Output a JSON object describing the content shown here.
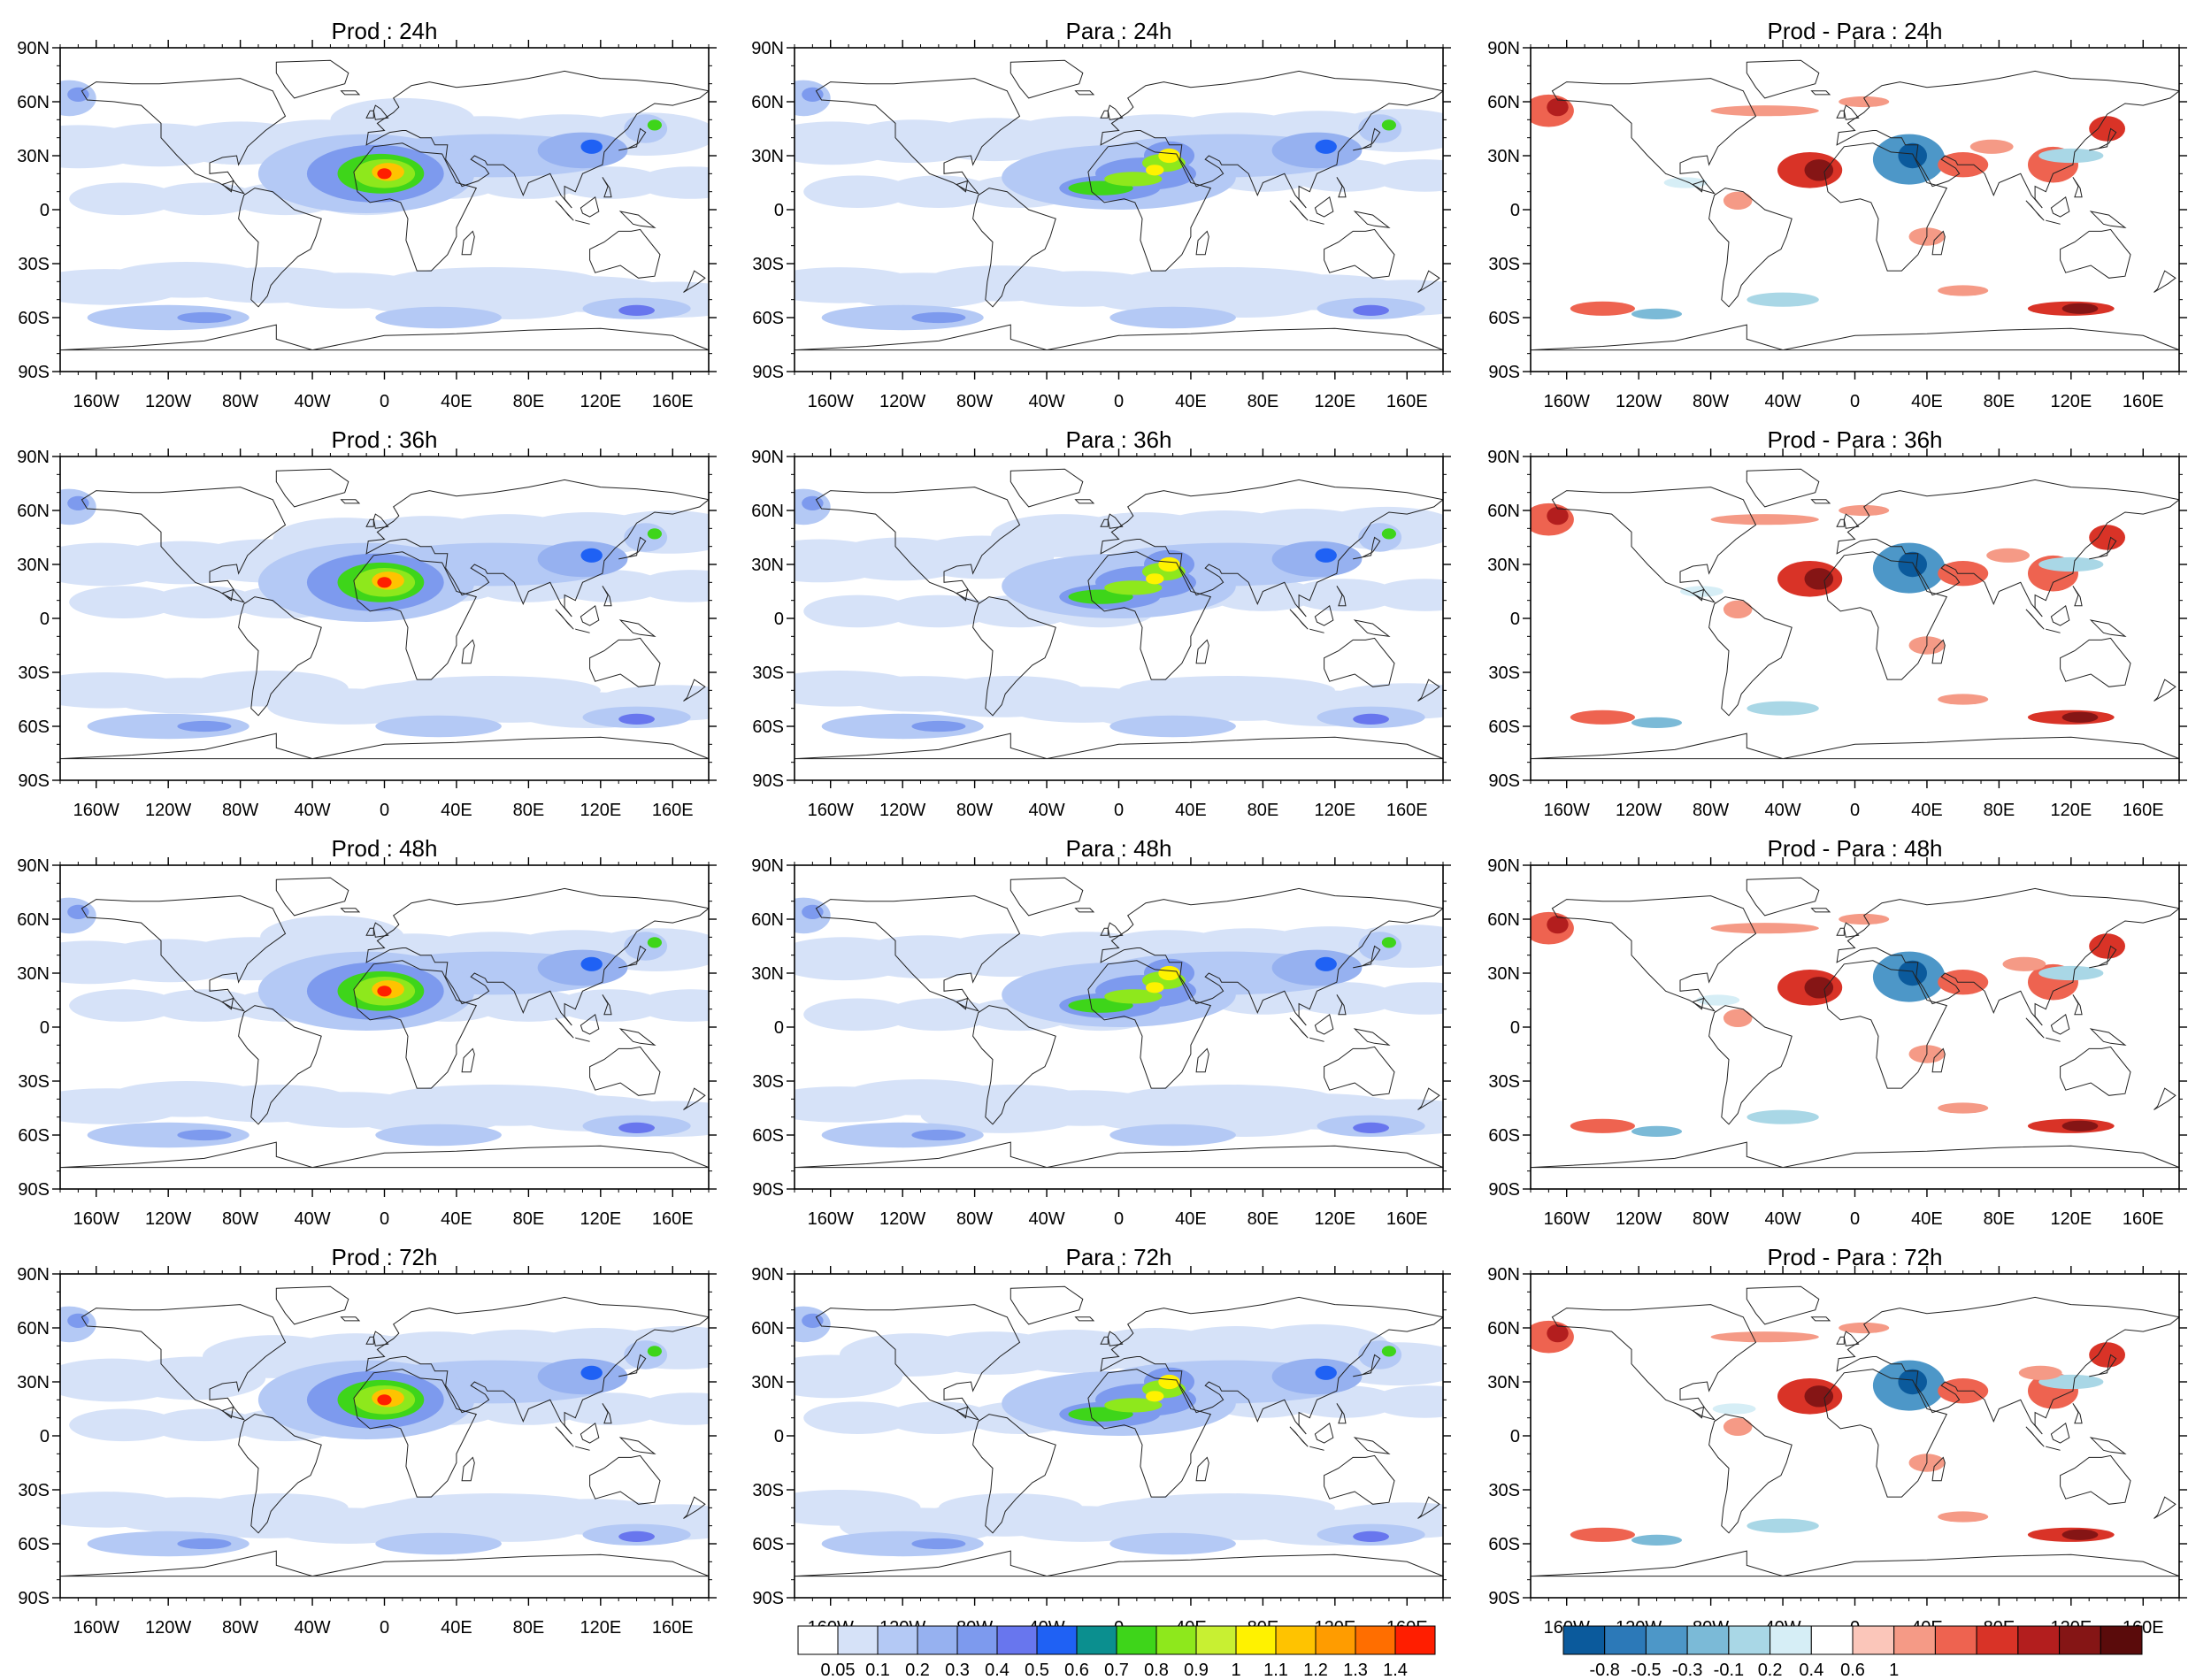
{
  "figure": {
    "panels": [
      {
        "title": "Prod : 24h",
        "kind": "field",
        "pattern": "prod"
      },
      {
        "title": "Para : 24h",
        "kind": "field",
        "pattern": "para"
      },
      {
        "title": "Prod - Para : 24h",
        "kind": "diff"
      },
      {
        "title": "Prod : 36h",
        "kind": "field",
        "pattern": "prod"
      },
      {
        "title": "Para : 36h",
        "kind": "field",
        "pattern": "para"
      },
      {
        "title": "Prod - Para : 36h",
        "kind": "diff"
      },
      {
        "title": "Prod : 48h",
        "kind": "field",
        "pattern": "prod"
      },
      {
        "title": "Para : 48h",
        "kind": "field",
        "pattern": "para"
      },
      {
        "title": "Prod - Para : 48h",
        "kind": "diff"
      },
      {
        "title": "Prod : 72h",
        "kind": "field",
        "pattern": "prod"
      },
      {
        "title": "Para : 72h",
        "kind": "field",
        "pattern": "para"
      },
      {
        "title": "Prod - Para : 72h",
        "kind": "diff"
      }
    ],
    "lat_ticks": [
      {
        "label": "90N",
        "lat": 90
      },
      {
        "label": "60N",
        "lat": 60
      },
      {
        "label": "30N",
        "lat": 30
      },
      {
        "label": "0",
        "lat": 0
      },
      {
        "label": "30S",
        "lat": -30
      },
      {
        "label": "60S",
        "lat": -60
      },
      {
        "label": "90S",
        "lat": -90
      }
    ],
    "lon_ticks": [
      {
        "label": "160W",
        "lon": -160
      },
      {
        "label": "120W",
        "lon": -120
      },
      {
        "label": "80W",
        "lon": -80
      },
      {
        "label": "40W",
        "lon": -40
      },
      {
        "label": "0",
        "lon": 0
      },
      {
        "label": "40E",
        "lon": 40
      },
      {
        "label": "80E",
        "lon": 80
      },
      {
        "label": "120E",
        "lon": 120
      },
      {
        "label": "160E",
        "lon": 160
      }
    ],
    "colorbar_field": {
      "labels": [
        "0.05",
        "0.1",
        "0.2",
        "0.3",
        "0.4",
        "0.5",
        "0.6",
        "0.7",
        "0.8",
        "0.9",
        "1",
        "1.1",
        "1.2",
        "1.3",
        "1.4"
      ],
      "colors": [
        "#ffffff",
        "#d6e2f8",
        "#b4c9f5",
        "#96b1f0",
        "#7d9aee",
        "#6876ee",
        "#1f61f4",
        "#0b8f8f",
        "#3ed51a",
        "#8ee81c",
        "#c8f032",
        "#fff200",
        "#ffc300",
        "#ff9c00",
        "#ff6e00",
        "#ff1e00"
      ]
    },
    "colorbar_diff": {
      "labels": [
        "-0.8",
        "-0.5",
        "-0.3",
        "-0.1",
        "0.2",
        "0.4",
        "0.6",
        "1"
      ],
      "colors": [
        "#0b5a9c",
        "#2c79b8",
        "#4d97c8",
        "#7bbad7",
        "#a9d7e6",
        "#d6eef6",
        "#ffffff",
        "#fbc6ba",
        "#f59a86",
        "#ee6350",
        "#d93327",
        "#b31e1e",
        "#851515",
        "#5a0b0b"
      ]
    }
  }
}
